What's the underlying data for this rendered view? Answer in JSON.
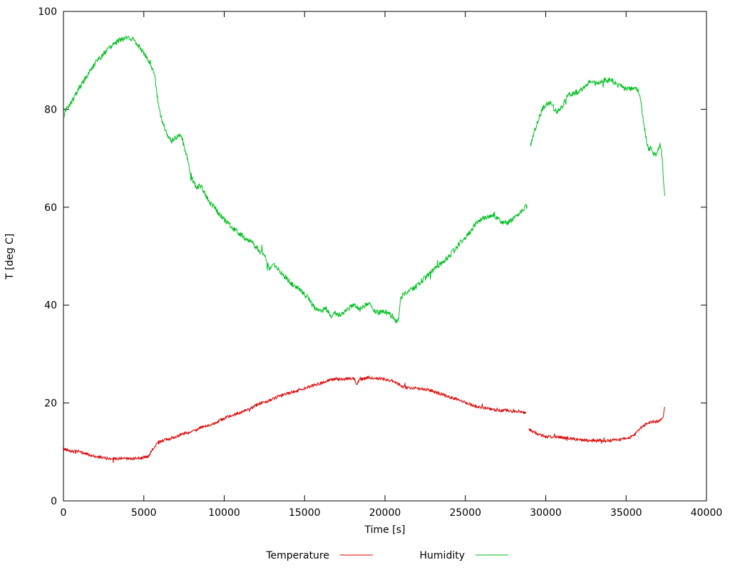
{
  "chart_data": {
    "type": "line",
    "title": "",
    "xlabel": "Time [s]",
    "ylabel": "T [deg C]",
    "xlim": [
      0,
      40000
    ],
    "ylim": [
      0,
      100
    ],
    "xticks": [
      0,
      5000,
      10000,
      15000,
      20000,
      25000,
      30000,
      35000,
      40000
    ],
    "yticks": [
      0,
      20,
      40,
      60,
      80,
      100
    ],
    "grid": false,
    "legend_position": "bottom-center",
    "background": "#ffffff",
    "axis_color": "#000000",
    "series": [
      {
        "name": "Temperature",
        "color": "#dd0000",
        "noise": 0.3,
        "segments": [
          [
            [
              0,
              10.6
            ],
            [
              300,
              10.4
            ],
            [
              600,
              10.1
            ],
            [
              900,
              10.1
            ],
            [
              1200,
              9.8
            ],
            [
              1500,
              9.5
            ],
            [
              1800,
              9.2
            ],
            [
              2100,
              9.0
            ],
            [
              2400,
              8.8
            ],
            [
              2700,
              8.7
            ],
            [
              3000,
              8.6
            ],
            [
              3400,
              8.6
            ],
            [
              3800,
              8.6
            ],
            [
              4200,
              8.6
            ],
            [
              4600,
              8.7
            ],
            [
              5000,
              8.9
            ],
            [
              5300,
              9.2
            ],
            [
              5500,
              10.2
            ],
            [
              5700,
              11.3
            ],
            [
              5900,
              11.9
            ],
            [
              6100,
              12.3
            ],
            [
              6400,
              12.5
            ],
            [
              6700,
              12.7
            ],
            [
              7000,
              13.1
            ],
            [
              7300,
              13.6
            ],
            [
              7600,
              13.8
            ],
            [
              7900,
              14.1
            ],
            [
              8200,
              14.4
            ],
            [
              8500,
              14.9
            ],
            [
              8800,
              15.2
            ],
            [
              9100,
              15.5
            ],
            [
              9400,
              15.9
            ],
            [
              9700,
              16.4
            ],
            [
              10000,
              16.9
            ],
            [
              10300,
              17.3
            ],
            [
              10600,
              17.6
            ],
            [
              10900,
              17.9
            ],
            [
              11200,
              18.3
            ],
            [
              11500,
              18.7
            ],
            [
              11800,
              19.2
            ],
            [
              12100,
              19.7
            ],
            [
              12400,
              20.1
            ],
            [
              12700,
              20.4
            ],
            [
              13000,
              20.8
            ],
            [
              13300,
              21.2
            ],
            [
              13600,
              21.6
            ],
            [
              13900,
              21.9
            ],
            [
              14200,
              22.2
            ],
            [
              14500,
              22.5
            ],
            [
              14800,
              22.8
            ],
            [
              15100,
              23.1
            ],
            [
              15400,
              23.4
            ],
            [
              15700,
              23.7
            ],
            [
              16000,
              24.1
            ],
            [
              16300,
              24.4
            ],
            [
              16600,
              24.7
            ],
            [
              16900,
              24.9
            ],
            [
              17200,
              24.8
            ],
            [
              17500,
              24.9
            ],
            [
              17800,
              25.0
            ],
            [
              18100,
              24.9
            ],
            [
              18250,
              23.7
            ],
            [
              18400,
              24.9
            ],
            [
              18700,
              25.0
            ],
            [
              19000,
              25.2
            ],
            [
              19300,
              25.1
            ],
            [
              19600,
              25.0
            ],
            [
              19900,
              24.9
            ],
            [
              20200,
              24.7
            ],
            [
              20500,
              24.4
            ],
            [
              20800,
              23.9
            ],
            [
              21100,
              23.3
            ],
            [
              21400,
              23.1
            ],
            [
              21700,
              23.0
            ],
            [
              22000,
              23.0
            ],
            [
              22300,
              22.9
            ],
            [
              22600,
              22.7
            ],
            [
              22900,
              22.5
            ],
            [
              23200,
              22.2
            ],
            [
              23500,
              21.8
            ],
            [
              23800,
              21.5
            ],
            [
              24100,
              21.1
            ],
            [
              24400,
              20.8
            ],
            [
              24700,
              20.4
            ],
            [
              25000,
              20.1
            ],
            [
              25300,
              19.8
            ],
            [
              25600,
              19.4
            ],
            [
              25900,
              19.1
            ],
            [
              26200,
              18.9
            ],
            [
              26500,
              18.8
            ],
            [
              26800,
              18.6
            ],
            [
              27100,
              18.5
            ],
            [
              27400,
              18.5
            ],
            [
              27700,
              18.4
            ],
            [
              28000,
              18.3
            ],
            [
              28300,
              18.3
            ],
            [
              28600,
              18.1
            ],
            [
              28750,
              17.9
            ]
          ],
          [
            [
              28950,
              14.6
            ],
            [
              29100,
              14.3
            ],
            [
              29300,
              14.0
            ],
            [
              29500,
              13.7
            ],
            [
              29700,
              13.4
            ],
            [
              30000,
              13.2
            ],
            [
              30300,
              13.1
            ],
            [
              30600,
              13.0
            ],
            [
              30900,
              13.0
            ],
            [
              31200,
              12.9
            ],
            [
              31500,
              12.8
            ],
            [
              31800,
              12.6
            ],
            [
              32100,
              12.5
            ],
            [
              32400,
              12.4
            ],
            [
              32700,
              12.3
            ],
            [
              33000,
              12.3
            ],
            [
              33300,
              12.3
            ],
            [
              33600,
              12.3
            ],
            [
              33900,
              12.3
            ],
            [
              34200,
              12.4
            ],
            [
              34500,
              12.5
            ],
            [
              34800,
              12.7
            ],
            [
              35100,
              12.9
            ],
            [
              35400,
              13.1
            ],
            [
              35600,
              13.8
            ],
            [
              35800,
              14.6
            ],
            [
              36000,
              15.2
            ],
            [
              36200,
              15.6
            ],
            [
              36400,
              15.9
            ],
            [
              36600,
              16.1
            ],
            [
              36800,
              16.2
            ],
            [
              37000,
              16.2
            ],
            [
              37100,
              16.4
            ],
            [
              37200,
              16.6
            ],
            [
              37300,
              17.3
            ],
            [
              37400,
              19.0
            ]
          ]
        ]
      },
      {
        "name": "Humidity",
        "color": "#00c020",
        "noise": 0.55,
        "segments": [
          [
            [
              0,
              78
            ],
            [
              150,
              80
            ],
            [
              400,
              81
            ],
            [
              700,
              82.5
            ],
            [
              900,
              84
            ],
            [
              1200,
              85.5
            ],
            [
              1600,
              87.5
            ],
            [
              2000,
              89.5
            ],
            [
              2400,
              91
            ],
            [
              2800,
              92.5
            ],
            [
              3200,
              93.5
            ],
            [
              3600,
              94.3
            ],
            [
              4000,
              94.5
            ],
            [
              4300,
              94.2
            ],
            [
              4600,
              93.2
            ],
            [
              4900,
              92
            ],
            [
              5200,
              90.5
            ],
            [
              5500,
              88.5
            ],
            [
              5700,
              86.5
            ],
            [
              5900,
              81
            ],
            [
              6100,
              78
            ],
            [
              6300,
              76
            ],
            [
              6500,
              74.5
            ],
            [
              6700,
              73.5
            ],
            [
              6900,
              74
            ],
            [
              7100,
              74.5
            ],
            [
              7300,
              75
            ],
            [
              7500,
              72.5
            ],
            [
              7700,
              70
            ],
            [
              7900,
              67
            ],
            [
              8100,
              65
            ],
            [
              8300,
              64
            ],
            [
              8500,
              64.5
            ],
            [
              8700,
              63.5
            ],
            [
              8900,
              62
            ],
            [
              9100,
              61
            ],
            [
              9400,
              60
            ],
            [
              9700,
              58.5
            ],
            [
              10000,
              57.5
            ],
            [
              10300,
              56.5
            ],
            [
              10600,
              55.5
            ],
            [
              11000,
              54.5
            ],
            [
              11400,
              53.5
            ],
            [
              11800,
              52.5
            ],
            [
              12200,
              51
            ],
            [
              12600,
              49.5
            ],
            [
              12800,
              47.5
            ],
            [
              13000,
              48.5
            ],
            [
              13300,
              47.5
            ],
            [
              13600,
              46.5
            ],
            [
              14000,
              45
            ],
            [
              14400,
              43.8
            ],
            [
              14800,
              42.8
            ],
            [
              15200,
              41.5
            ],
            [
              15600,
              39.5
            ],
            [
              16000,
              38.5
            ],
            [
              16300,
              39.5
            ],
            [
              16600,
              37.8
            ],
            [
              16900,
              38.3
            ],
            [
              17200,
              38
            ],
            [
              17500,
              38.5
            ],
            [
              17800,
              39.5
            ],
            [
              18100,
              40.3
            ],
            [
              18400,
              39
            ],
            [
              18700,
              39.8
            ],
            [
              19000,
              40.5
            ],
            [
              19300,
              39
            ],
            [
              19600,
              38.3
            ],
            [
              19900,
              38.8
            ],
            [
              20200,
              38.3
            ],
            [
              20500,
              37.5
            ],
            [
              20700,
              36.8
            ],
            [
              20850,
              37.2
            ],
            [
              20950,
              41
            ],
            [
              21100,
              42
            ],
            [
              21400,
              42.8
            ],
            [
              21700,
              43.3
            ],
            [
              22000,
              44
            ],
            [
              22300,
              45
            ],
            [
              22600,
              45.8
            ],
            [
              22900,
              46.8
            ],
            [
              23200,
              47.8
            ],
            [
              23500,
              48.5
            ],
            [
              23800,
              49.5
            ],
            [
              24100,
              50.5
            ],
            [
              24400,
              51.5
            ],
            [
              24700,
              52.8
            ],
            [
              25000,
              53.8
            ],
            [
              25300,
              55
            ],
            [
              25600,
              56.5
            ],
            [
              25900,
              57.3
            ],
            [
              26200,
              57.8
            ],
            [
              26500,
              58
            ],
            [
              26800,
              58.3
            ],
            [
              27100,
              57.3
            ],
            [
              27400,
              56.6
            ],
            [
              27700,
              57
            ],
            [
              28000,
              57.6
            ],
            [
              28300,
              58.4
            ],
            [
              28600,
              59.4
            ],
            [
              28850,
              60.5
            ]
          ],
          [
            [
              29050,
              72.5
            ],
            [
              29200,
              74.5
            ],
            [
              29400,
              76.5
            ],
            [
              29600,
              78.5
            ],
            [
              29800,
              80
            ],
            [
              30000,
              81
            ],
            [
              30200,
              81.4
            ],
            [
              30400,
              81
            ],
            [
              30600,
              79.6
            ],
            [
              30800,
              79.8
            ],
            [
              31000,
              80.4
            ],
            [
              31200,
              82
            ],
            [
              31400,
              83
            ],
            [
              31700,
              83.3
            ],
            [
              32000,
              83.6
            ],
            [
              32300,
              84.2
            ],
            [
              32600,
              85.3
            ],
            [
              32900,
              85.8
            ],
            [
              33200,
              85.2
            ],
            [
              33500,
              85.6
            ],
            [
              33800,
              86
            ],
            [
              34100,
              86
            ],
            [
              34300,
              85.2
            ],
            [
              34600,
              84.8
            ],
            [
              34900,
              84.3
            ],
            [
              35200,
              84
            ],
            [
              35500,
              84.4
            ],
            [
              35800,
              83.8
            ],
            [
              35950,
              81
            ],
            [
              36100,
              77
            ],
            [
              36250,
              74
            ],
            [
              36400,
              71.5
            ],
            [
              36550,
              72.5
            ],
            [
              36700,
              70.8
            ],
            [
              36850,
              70.5
            ],
            [
              37000,
              71.5
            ],
            [
              37100,
              73
            ],
            [
              37200,
              72
            ],
            [
              37300,
              67
            ],
            [
              37400,
              62
            ]
          ]
        ]
      }
    ]
  }
}
